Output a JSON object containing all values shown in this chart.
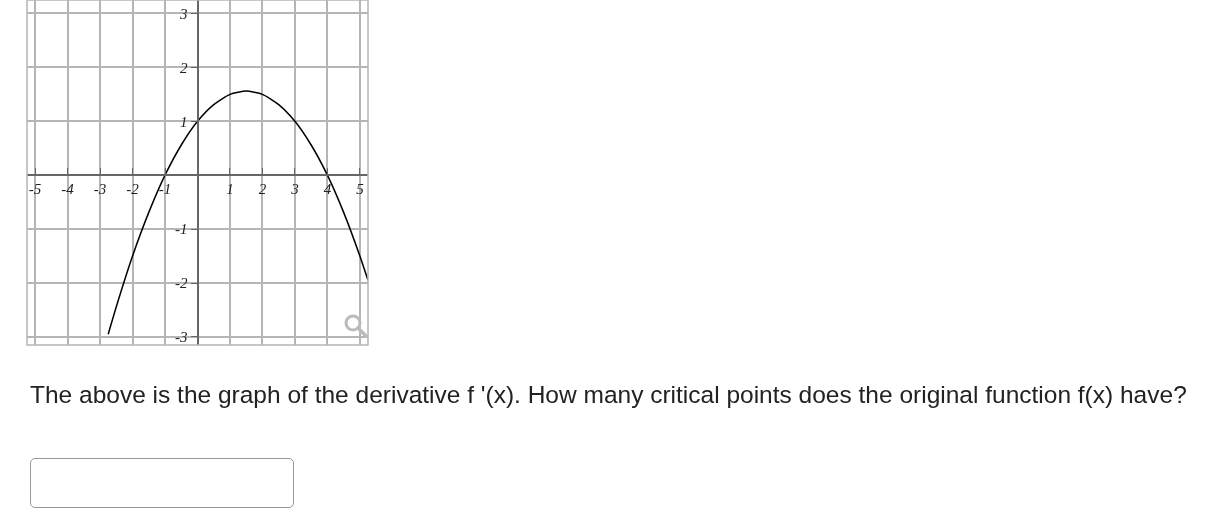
{
  "chart_data": {
    "type": "line",
    "x": [
      -2.75,
      -2.5,
      -2,
      -1.5,
      -1,
      -0.5,
      0,
      0.5,
      1,
      1.5,
      2,
      2.5,
      3,
      3.5,
      4,
      4.5,
      5,
      5.25
    ],
    "series": [
      {
        "color": "#000000",
        "values": [
          -2.95,
          -2.44,
          -1.5,
          -0.69,
          0,
          0.56,
          1,
          1.31,
          1.5,
          1.56,
          1.5,
          1.31,
          1,
          0.56,
          0,
          -0.69,
          -1.5,
          -1.95
        ]
      }
    ],
    "xlim": [
      -5.25,
      5.25
    ],
    "ylim": [
      -3.15,
      3.25
    ],
    "xticks": [
      -5,
      -4,
      -3,
      -2,
      -1,
      1,
      2,
      3,
      4,
      5
    ],
    "yticks": [
      -3,
      -2,
      -1,
      1,
      2,
      3
    ],
    "grid": true,
    "marker": "none",
    "line_style": "solid",
    "annotations": [
      "The above is the graph of the derivative f '(x). How many critical points does the original function f(x) have?"
    ]
  }
}
